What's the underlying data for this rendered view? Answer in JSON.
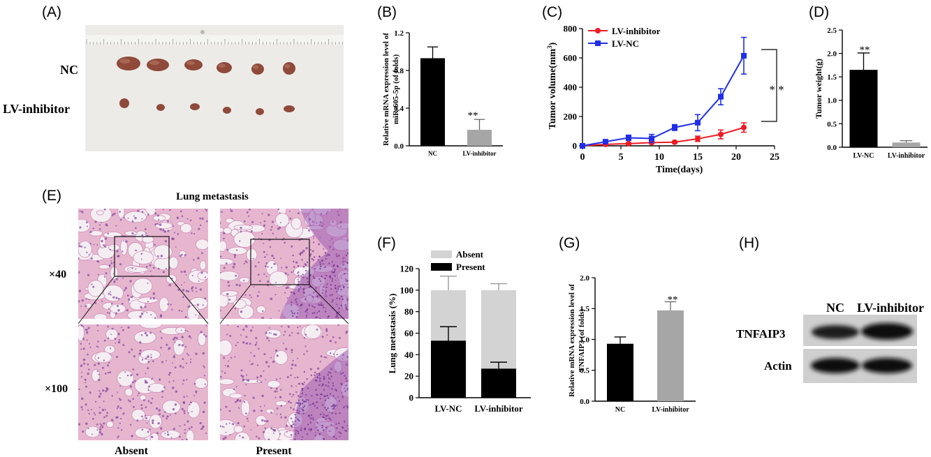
{
  "panels": {
    "A": {
      "letter": "(A)",
      "rows": [
        "NC",
        "LV-inhibitor"
      ],
      "tumor_counts": [
        6,
        6
      ],
      "colors": {
        "board": "#ecebe7",
        "ruler": "#f4f4f1",
        "tumor": "#8f4a3a"
      }
    },
    "B": {
      "letter": "(B)",
      "ylabel_line1": "Relative mRNA expression level of",
      "ylabel_line2": "miR-605-5p (of folds)",
      "sig": "**"
    },
    "C": {
      "letter": "(C)",
      "sig": "* *"
    },
    "D": {
      "letter": "(D)",
      "sig": "**"
    },
    "E": {
      "letter": "(E)",
      "title": "Lung metastasis",
      "mag_low": "×40",
      "mag_high": "×100",
      "col_left": "Absent",
      "col_right": "Present",
      "colors": {
        "tissue": "#e6b6cf",
        "nucleus": "#8a4aa0",
        "space": "#f4eef3"
      }
    },
    "F": {
      "letter": "(F)"
    },
    "G": {
      "letter": "(G)",
      "ylabel_line1": "Relative mRNA expression level of",
      "ylabel_line2": "TNFAIP3 (of folds)",
      "sig": "**"
    },
    "H": {
      "letter": "(H)",
      "lanes": [
        "NC",
        "LV-inhibitor"
      ],
      "rows": [
        "TNFAIP3",
        "Actin"
      ]
    }
  },
  "chart_data": [
    {
      "id": "B",
      "type": "bar",
      "categories": [
        "NC",
        "LV-inhibitor"
      ],
      "values": [
        0.93,
        0.17
      ],
      "errors": [
        0.12,
        0.11
      ],
      "colors": [
        "#000000",
        "#a6a6a6"
      ],
      "ylim": [
        0,
        1.2
      ],
      "yticks": [
        "0.0",
        "0.4",
        "0.8",
        "1.2"
      ],
      "ylabel": "Relative mRNA expression level of miR-605-5p (of folds)"
    },
    {
      "id": "C",
      "type": "line",
      "xlabel": "Time(days)",
      "ylabel": "Tumor volume(mm",
      "ylabel_sup": "3",
      "ylabel_close": ")",
      "xlim": [
        0,
        25
      ],
      "ylim": [
        0,
        800
      ],
      "xticks": [
        "0",
        "5",
        "10",
        "15",
        "20",
        "25"
      ],
      "yticks": [
        "0",
        "200",
        "400",
        "600",
        "800"
      ],
      "legend_position": "top-left",
      "series": [
        {
          "name": "LV-inhibitor",
          "color": "#ee1c24",
          "marker": "circle",
          "x": [
            0,
            3,
            6,
            9,
            12,
            15,
            18,
            21
          ],
          "y": [
            0,
            10,
            15,
            22,
            25,
            48,
            78,
            125
          ],
          "err": [
            0,
            5,
            6,
            8,
            7,
            18,
            30,
            32
          ]
        },
        {
          "name": "LV-NC",
          "color": "#1f2ee8",
          "marker": "square",
          "x": [
            0,
            3,
            6,
            9,
            12,
            15,
            18,
            21
          ],
          "y": [
            0,
            28,
            55,
            50,
            125,
            158,
            335,
            615
          ],
          "err": [
            0,
            8,
            18,
            28,
            20,
            55,
            55,
            125
          ]
        }
      ]
    },
    {
      "id": "D",
      "type": "bar",
      "categories": [
        "LV-NC",
        "LV-inhibitor"
      ],
      "values": [
        1.65,
        0.1
      ],
      "errors": [
        0.36,
        0.04
      ],
      "colors": [
        "#000000",
        "#a6a6a6"
      ],
      "ylim": [
        0,
        2.5
      ],
      "yticks": [
        "0.0",
        "0.5",
        "1.0",
        "1.5",
        "2.0",
        "2.5"
      ],
      "ylabel": "Tumor weight(g)"
    },
    {
      "id": "F",
      "type": "bar",
      "stacked": true,
      "categories": [
        "LV-NC",
        "LV-inhibitor"
      ],
      "ylim": [
        0,
        120
      ],
      "yticks": [
        "0",
        "20",
        "40",
        "60",
        "80",
        "100",
        "120"
      ],
      "ylabel": "Lung metastasis (%)",
      "legend_position": "top",
      "series": [
        {
          "name": "Present",
          "color": "#000000",
          "values": [
            53,
            27
          ],
          "errors": [
            13,
            6
          ]
        },
        {
          "name": "Absent",
          "color": "#d3d3d3",
          "values": [
            47,
            73
          ],
          "errors": [
            13,
            6
          ]
        }
      ]
    },
    {
      "id": "G",
      "type": "bar",
      "categories": [
        "NC",
        "LV-inhibitor"
      ],
      "values": [
        0.93,
        1.47
      ],
      "errors": [
        0.11,
        0.14
      ],
      "colors": [
        "#000000",
        "#a6a6a6"
      ],
      "ylim": [
        0,
        2.0
      ],
      "yticks": [
        "0.0",
        "0.5",
        "1.0",
        "1.5",
        "2.0"
      ],
      "ylabel": "Relative mRNA expression level of TNFAIP3 (of folds)"
    }
  ]
}
